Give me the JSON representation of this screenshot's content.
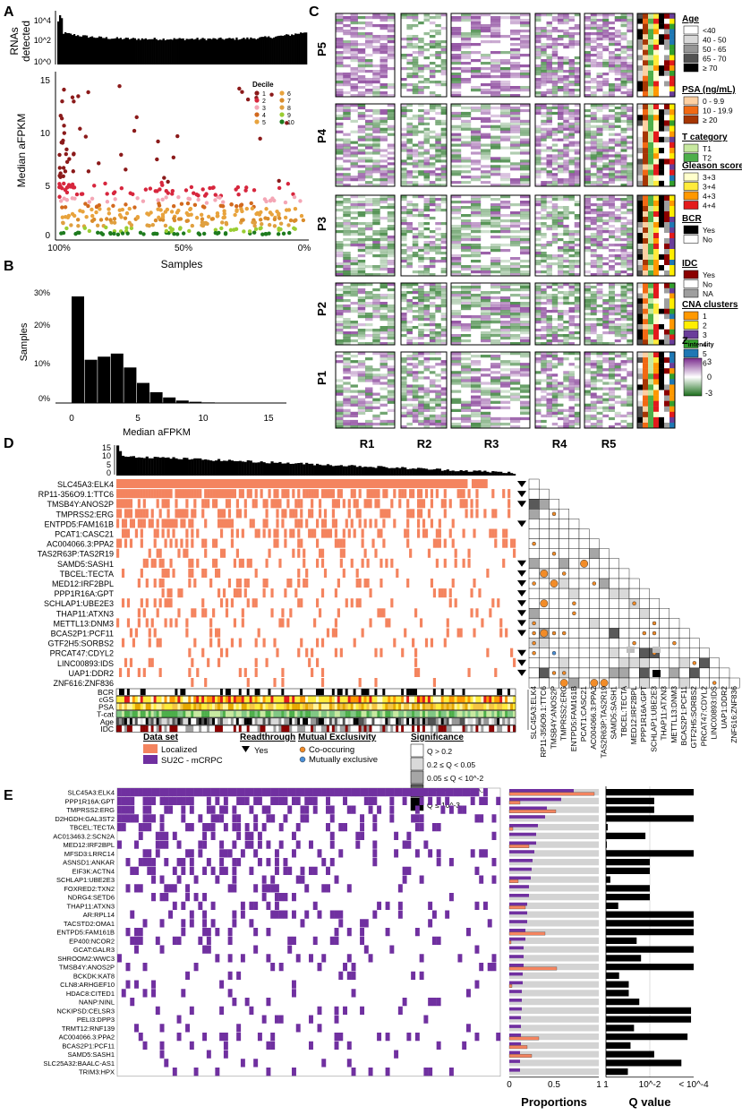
{
  "panels": {
    "A": {
      "letter": "A",
      "top_ylabel": [
        "RNAs",
        "detected"
      ],
      "top_yticks": [
        "10^4",
        "10^2",
        "10^0"
      ],
      "ylabel": "Median aFPKM",
      "yticks": [
        "15",
        "10",
        "5",
        "0"
      ],
      "xticks": [
        "100%",
        "50%",
        "0%"
      ],
      "xlabel": "Samples",
      "legend_title": "Decile",
      "deciles": [
        {
          "label": "1",
          "color": "#8b1a1a"
        },
        {
          "label": "2",
          "color": "#d7263d"
        },
        {
          "label": "3",
          "color": "#f4a6b5"
        },
        {
          "label": "4",
          "color": "#d2691e"
        },
        {
          "label": "5",
          "color": "#e8a33d"
        },
        {
          "label": "6",
          "color": "#e8a33d"
        },
        {
          "label": "7",
          "color": "#d98c2b"
        },
        {
          "label": "8",
          "color": "#e0a040"
        },
        {
          "label": "9",
          "color": "#9acd32"
        },
        {
          "label": "10",
          "color": "#1e7b1e"
        }
      ]
    },
    "B": {
      "letter": "B",
      "ylabel": "Samples",
      "yticks": [
        "30%",
        "20%",
        "10%",
        "0%"
      ],
      "xticks": [
        "0",
        "5",
        "10",
        "15"
      ],
      "xlabel": "Median aFPKM",
      "bars": [
        34.5,
        14.0,
        15.0,
        16.0,
        11.5,
        6.5,
        3.5,
        1.8,
        0.8,
        0.4,
        0.2,
        0.1
      ]
    },
    "C": {
      "letter": "C",
      "rows": [
        "P5",
        "P4",
        "P3",
        "P2",
        "P1"
      ],
      "cols": [
        "R1",
        "R2",
        "R3",
        "R4",
        "R5"
      ],
      "legend": [
        {
          "title": "Age",
          "items": [
            {
              "label": "<40",
              "color": "#ffffff"
            },
            {
              "label": "40 - 50",
              "color": "#d9d9d9"
            },
            {
              "label": "50 - 65",
              "color": "#969696"
            },
            {
              "label": "65 - 70",
              "color": "#525252"
            },
            {
              "label": "≥ 70",
              "color": "#000000"
            }
          ]
        },
        {
          "title": "PSA (ng/mL)",
          "items": [
            {
              "label": "0 - 9.9",
              "color": "#fdd0a2"
            },
            {
              "label": "10 - 19.9",
              "color": "#f16913"
            },
            {
              "label": "≥ 20",
              "color": "#a63603"
            }
          ]
        },
        {
          "title": "T category",
          "items": [
            {
              "label": "T1",
              "color": "#c7e9a0"
            },
            {
              "label": "T2",
              "color": "#4daf4a"
            }
          ]
        },
        {
          "title": "Gleason score",
          "items": [
            {
              "label": "3+3",
              "color": "#ffffcc"
            },
            {
              "label": "3+4",
              "color": "#ffeb3b"
            },
            {
              "label": "4+3",
              "color": "#ff9800"
            },
            {
              "label": "4+4",
              "color": "#e31a1c"
            }
          ]
        },
        {
          "title": "BCR",
          "items": [
            {
              "label": "Yes",
              "color": "#000000"
            },
            {
              "label": "No",
              "color": "#ffffff"
            }
          ]
        },
        {
          "title": "IDC",
          "items": [
            {
              "label": "Yes",
              "color": "#8b0000"
            },
            {
              "label": "No",
              "color": "#ffffff"
            },
            {
              "label": "NA",
              "color": "#9e9e9e"
            }
          ]
        },
        {
          "title": "CNA clusters",
          "items": [
            {
              "label": "1",
              "color": "#ff9900"
            },
            {
              "label": "2",
              "color": "#ffee00"
            },
            {
              "label": "3",
              "color": "#6a3d9a"
            },
            {
              "label": "4",
              "color": "#33a02c"
            },
            {
              "label": "5",
              "color": "#1f78b4"
            },
            {
              "label": "6",
              "color": "#e31a1c"
            }
          ]
        }
      ],
      "z_title": "Z",
      "z_sub": "intensity",
      "z_ticks": [
        "3",
        "0",
        "-3"
      ]
    },
    "D": {
      "letter": "D",
      "yticks": [
        "15",
        "10",
        "5",
        "0"
      ],
      "genes": [
        "SLC45A3:ELK4",
        "RP11-356O9.1:TTC6",
        "TMSB4Y:ANOS2P",
        "TMPRSS2:ERG",
        "ENTPD5:FAM161B",
        "PCAT1:CASC21",
        "AC004066.3:PPA2",
        "TAS2R63P:TAS2R19",
        "SAMD5:SASH1",
        "TBCEL:TECTA",
        "MED12:IRF2BPL",
        "PPP1R16A:GPT",
        "SCHLAP1:UBE2E3",
        "THAP11:ATXN3",
        "METTL13:DNM3",
        "BCAS2P1:PCF11",
        "GTF2H5:SORBS2",
        "PRCAT47:CDYL2",
        "LINC00893:IDS",
        "UAP1:DDR2",
        "ZNF616:ZNF836"
      ],
      "readthrough": [
        1,
        1,
        1,
        0,
        1,
        0,
        0,
        0,
        1,
        1,
        1,
        1,
        1,
        1,
        1,
        1,
        0,
        1,
        1,
        1,
        0
      ],
      "counts": [
        140,
        88,
        62,
        58,
        55,
        40,
        35,
        28,
        30,
        26,
        24,
        22,
        20,
        18,
        20,
        19,
        14,
        16,
        14,
        12,
        8
      ],
      "clin_rows": [
        "BCR",
        "cGS",
        "PSA",
        "T-cat",
        "Age",
        "IDC"
      ],
      "legend_dataset_title": "Data set",
      "legend_dataset": [
        {
          "label": "Localized",
          "color": "#f4845f"
        },
        {
          "label": "SU2C - mCRPC",
          "color": "#7030a0"
        }
      ],
      "legend_readthrough_title": "Readthrough",
      "legend_readthrough": "Yes",
      "legend_me_title": "Mutual Exclusivity",
      "legend_me": [
        {
          "label": "Co-occuring",
          "color": "#f28c28"
        },
        {
          "label": "Mutually exclusive",
          "color": "#4a90d9"
        }
      ],
      "legend_sig_title": "Significance",
      "legend_sig": [
        {
          "label": "Q > 0.2",
          "color": "#ffffff"
        },
        {
          "label": "0.2  ≤ Q < 0.05",
          "color": "#d9d9d9"
        },
        {
          "label": "0.05  ≤ Q < 10^-2",
          "color": "#a6a6a6"
        },
        {
          "label": "10^-2  ≤ Q < 10^-3",
          "color": "#595959"
        },
        {
          "label": "Q ≤ 10^-3",
          "color": "#000000"
        }
      ]
    },
    "E": {
      "letter": "E",
      "genes": [
        "SLC45A3:ELK4",
        "PPP1R16A:GPT",
        "TMPRSS2:ERG",
        "D2HGDH:GAL3ST2",
        "TBCEL:TECTA",
        "AC013463.2:SCN2A",
        "MED12:IRF2BPL",
        "MFSD3:LRRC14",
        "ASNSD1:ANKAR",
        "EIF3K:ACTN4",
        "SCHLAP1:UBE2E3",
        "FOXRED2:TXN2",
        "NDRG4:SETD6",
        "THAP11:ATXN3",
        "AR:RPL14",
        "TACSTD2:OMA1",
        "ENTPD5:FAM161B",
        "EP400:NCOR2",
        "GCAT:GALR3",
        "SHROOM2:WWC3",
        "TMSB4Y:ANOS2P",
        "BCKDK:KAT8",
        "CLN8:ARHGEF10",
        "HDAC8:CITED1",
        "NANP:NINL",
        "NCKIPSD:CELSR3",
        "PELI3:DPP3",
        "TRMT12:RNF139",
        "AC004066.3:PPA2",
        "BCAS2P1:PCF11",
        "SAMD5:SASH1",
        "SLC25A32:BAALC-AS1",
        "TRIM3:HPX"
      ],
      "prop_mcrpc": [
        0.72,
        0.58,
        0.42,
        0.4,
        0.32,
        0.3,
        0.3,
        0.28,
        0.26,
        0.25,
        0.24,
        0.22,
        0.22,
        0.2,
        0.2,
        0.2,
        0.18,
        0.18,
        0.16,
        0.16,
        0.16,
        0.15,
        0.15,
        0.14,
        0.14,
        0.14,
        0.13,
        0.13,
        0.13,
        0.13,
        0.12,
        0.12,
        0.12
      ],
      "prop_local": [
        0.95,
        0.12,
        0.52,
        0.0,
        0.04,
        0.0,
        0.22,
        0.0,
        0.0,
        0.0,
        0.1,
        0.0,
        0.0,
        0.18,
        0.0,
        0.0,
        0.4,
        0.02,
        0.0,
        0.0,
        0.53,
        0.0,
        0.03,
        0.0,
        0.0,
        0.0,
        0.0,
        0.0,
        0.33,
        0.2,
        0.25,
        0.0,
        0.0
      ],
      "qval": [
        1.0,
        0.55,
        0.55,
        1.0,
        0.02,
        0.45,
        0.01,
        1.0,
        0.5,
        0.5,
        0.05,
        0.5,
        0.5,
        0.14,
        1.0,
        1.0,
        1.0,
        0.35,
        1.0,
        0.4,
        1.0,
        0.15,
        0.26,
        0.26,
        0.38,
        0.97,
        0.97,
        0.32,
        0.93,
        0.28,
        0.55,
        0.86,
        0.25
      ],
      "prop_ticks": [
        "0",
        "0.5",
        "1"
      ],
      "prop_label": "Proportions",
      "q_ticks": [
        "1",
        "10^-2",
        "< 10^-4"
      ],
      "q_label": "Q value"
    }
  }
}
